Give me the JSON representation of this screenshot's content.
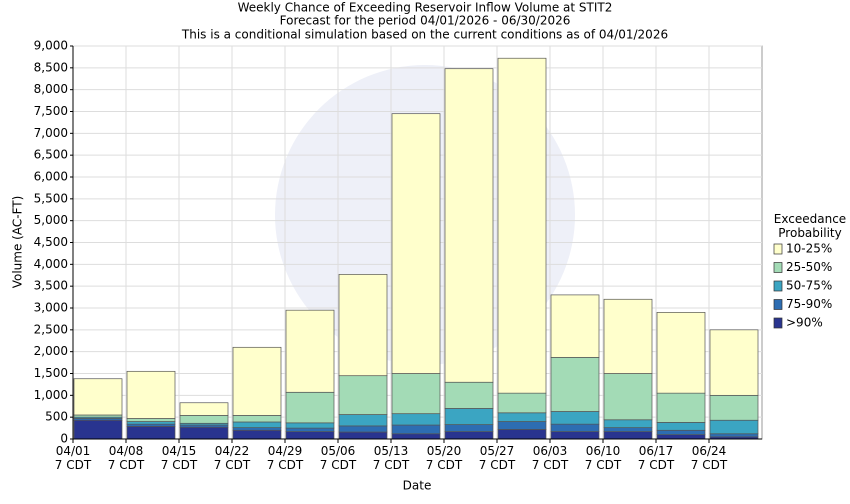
{
  "chart_data": {
    "type": "stacked_bar",
    "title": "Weekly Chance of Exceeding Reservoir Inflow Volume at STIT2",
    "subtitle": "Forecast for the period 04/01/2026 - 06/30/2026",
    "subtitle2": "This is a conditional simulation based on the current conditions as of 04/01/2026",
    "xlabel": "Date",
    "ylabel": "Volume (AC-FT)",
    "legend_title": "Exceedance\nProbability",
    "categories": [
      "04/01\n7 CDT",
      "04/08\n7 CDT",
      "04/15\n7 CDT",
      "04/22\n7 CDT",
      "04/29\n7 CDT",
      "05/06\n7 CDT",
      "05/13\n7 CDT",
      "05/20\n7 CDT",
      "05/27\n7 CDT",
      "06/03\n7 CDT",
      "06/10\n7 CDT",
      "06/17\n7 CDT",
      "06/24\n7 CDT"
    ],
    "series": [
      {
        "name": ">90%",
        "color": "#29348f",
        "values": [
          430,
          290,
          270,
          200,
          170,
          160,
          120,
          170,
          220,
          170,
          170,
          100,
          50
        ]
      },
      {
        "name": "75-90%",
        "color": "#2d6db2",
        "values": [
          40,
          50,
          50,
          60,
          80,
          140,
          200,
          160,
          180,
          170,
          90,
          100,
          70
        ]
      },
      {
        "name": "50-75%",
        "color": "#3ba5c2",
        "values": [
          30,
          60,
          40,
          130,
          120,
          260,
          260,
          370,
          200,
          290,
          180,
          180,
          310
        ]
      },
      {
        "name": "25-50%",
        "color": "#a3dbb6",
        "values": [
          50,
          70,
          180,
          150,
          700,
          890,
          920,
          600,
          450,
          1240,
          1060,
          670,
          570
        ]
      },
      {
        "name": "10-25%",
        "color": "#ffffcc",
        "values": [
          830,
          1080,
          290,
          1560,
          1880,
          2320,
          5950,
          7180,
          7670,
          1430,
          1700,
          1850,
          1500
        ]
      }
    ],
    "ylim": [
      0,
      9000
    ],
    "yticks": [
      0,
      500,
      {
        "value": 1000,
        "label": "1,000"
      },
      {
        "value": 1500,
        "label": "1,500"
      },
      {
        "value": 2000,
        "label": "2,000"
      },
      {
        "value": 2500,
        "label": "2,500"
      },
      {
        "value": 3000,
        "label": "3,000"
      },
      {
        "value": 3500,
        "label": "3,500"
      },
      {
        "value": 4000,
        "label": "4,000"
      },
      {
        "value": 4500,
        "label": "4,500"
      },
      {
        "value": 5000,
        "label": "5,000"
      },
      {
        "value": 5500,
        "label": "5,500"
      },
      {
        "value": 6000,
        "label": "6,000"
      },
      {
        "value": 6500,
        "label": "6,500"
      },
      {
        "value": 7000,
        "label": "7,000"
      },
      {
        "value": 7500,
        "label": "7,500"
      },
      {
        "value": 8000,
        "label": "8,000"
      },
      {
        "value": 8500,
        "label": "8,500"
      },
      {
        "value": 9000,
        "label": "9,000"
      }
    ],
    "grid": true
  }
}
